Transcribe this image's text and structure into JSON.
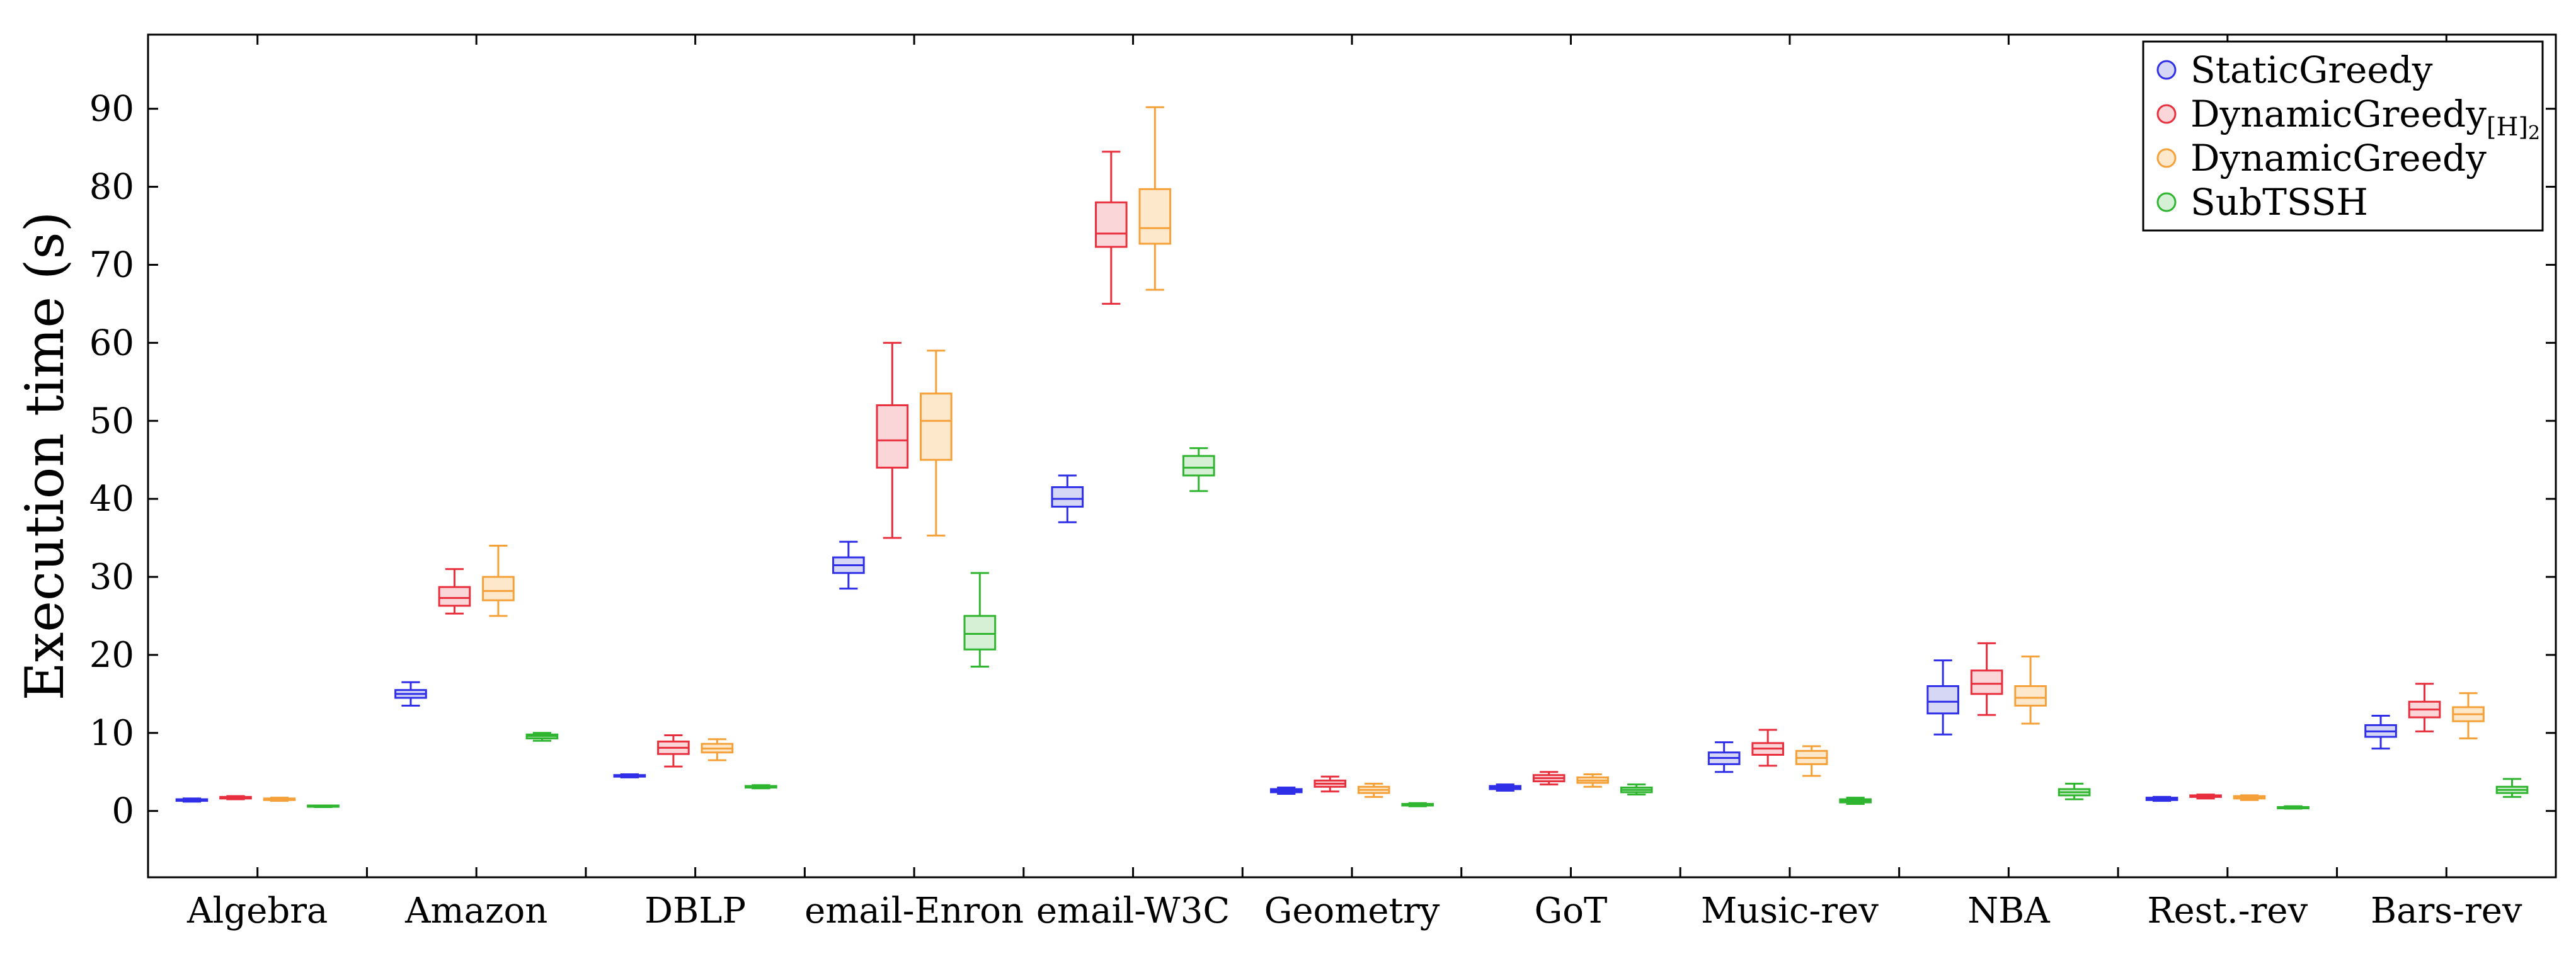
{
  "chart_data": {
    "type": "boxplot",
    "title": "",
    "xlabel": "",
    "ylabel": "Execution time (s)",
    "ylim": [
      -8.5,
      99.5
    ],
    "yticks": [
      0,
      10,
      20,
      30,
      40,
      50,
      60,
      70,
      80,
      90
    ],
    "categories": [
      "Algebra",
      "Amazon",
      "DBLP",
      "email-Enron",
      "email-W3C",
      "Geometry",
      "GoT",
      "Music-rev",
      "NBA",
      "Rest.-rev",
      "Bars-rev"
    ],
    "legend_position": "top-right",
    "series": [
      {
        "name": "StaticGreedy",
        "color": "#2f2fe8",
        "fill": "#d6d6f5",
        "boxes": [
          {
            "min": 1.2,
            "q1": 1.3,
            "median": 1.4,
            "q3": 1.5,
            "max": 1.6
          },
          {
            "min": 13.5,
            "q1": 14.5,
            "median": 15.0,
            "q3": 15.5,
            "max": 16.5
          },
          {
            "min": 4.3,
            "q1": 4.4,
            "median": 4.5,
            "q3": 4.6,
            "max": 4.7
          },
          {
            "min": 28.5,
            "q1": 30.5,
            "median": 31.5,
            "q3": 32.5,
            "max": 34.5
          },
          {
            "min": 37.0,
            "q1": 39.0,
            "median": 40.0,
            "q3": 41.5,
            "max": 43.0
          },
          {
            "min": 2.2,
            "q1": 2.4,
            "median": 2.6,
            "q3": 2.8,
            "max": 3.0
          },
          {
            "min": 2.6,
            "q1": 2.8,
            "median": 3.0,
            "q3": 3.2,
            "max": 3.4
          },
          {
            "min": 5.0,
            "q1": 6.0,
            "median": 6.8,
            "q3": 7.5,
            "max": 8.8
          },
          {
            "min": 9.8,
            "q1": 12.5,
            "median": 14.0,
            "q3": 16.0,
            "max": 19.3
          },
          {
            "min": 1.3,
            "q1": 1.4,
            "median": 1.5,
            "q3": 1.7,
            "max": 1.8
          },
          {
            "min": 8.0,
            "q1": 9.5,
            "median": 10.2,
            "q3": 11.0,
            "max": 12.2
          }
        ]
      },
      {
        "name": "DynamicGreedy[H]2",
        "label_main": "DynamicGreedy",
        "label_sub": "[H]",
        "label_subsub": "2",
        "color": "#e82f3e",
        "fill": "#fbd6d9",
        "boxes": [
          {
            "min": 1.5,
            "q1": 1.6,
            "median": 1.7,
            "q3": 1.8,
            "max": 1.9
          },
          {
            "min": 25.3,
            "q1": 26.3,
            "median": 27.3,
            "q3": 28.7,
            "max": 31.0
          },
          {
            "min": 5.7,
            "q1": 7.3,
            "median": 8.1,
            "q3": 8.9,
            "max": 9.7
          },
          {
            "min": 35.0,
            "q1": 44.0,
            "median": 47.5,
            "q3": 52.0,
            "max": 60.0
          },
          {
            "min": 65.0,
            "q1": 72.3,
            "median": 74.0,
            "q3": 78.0,
            "max": 84.5
          },
          {
            "min": 2.5,
            "q1": 3.1,
            "median": 3.5,
            "q3": 3.9,
            "max": 4.4
          },
          {
            "min": 3.4,
            "q1": 3.8,
            "median": 4.2,
            "q3": 4.6,
            "max": 5.0
          },
          {
            "min": 5.8,
            "q1": 7.2,
            "median": 8.0,
            "q3": 8.7,
            "max": 10.4
          },
          {
            "min": 12.3,
            "q1": 15.0,
            "median": 16.3,
            "q3": 18.0,
            "max": 21.5
          },
          {
            "min": 1.6,
            "q1": 1.8,
            "median": 1.9,
            "q3": 2.0,
            "max": 2.1
          },
          {
            "min": 10.2,
            "q1": 12.0,
            "median": 13.0,
            "q3": 14.0,
            "max": 16.3
          }
        ]
      },
      {
        "name": "DynamicGreedy",
        "color": "#f5a13a",
        "fill": "#fde8cc",
        "boxes": [
          {
            "min": 1.3,
            "q1": 1.4,
            "median": 1.5,
            "q3": 1.6,
            "max": 1.7
          },
          {
            "min": 25.0,
            "q1": 27.0,
            "median": 28.2,
            "q3": 30.0,
            "max": 34.0
          },
          {
            "min": 6.5,
            "q1": 7.5,
            "median": 8.0,
            "q3": 8.6,
            "max": 9.2
          },
          {
            "min": 35.3,
            "q1": 45.0,
            "median": 50.0,
            "q3": 53.5,
            "max": 59.0
          },
          {
            "min": 66.8,
            "q1": 72.7,
            "median": 74.7,
            "q3": 79.7,
            "max": 90.2
          },
          {
            "min": 1.8,
            "q1": 2.3,
            "median": 2.7,
            "q3": 3.1,
            "max": 3.5
          },
          {
            "min": 3.1,
            "q1": 3.6,
            "median": 3.9,
            "q3": 4.3,
            "max": 4.7
          },
          {
            "min": 4.5,
            "q1": 6.0,
            "median": 6.8,
            "q3": 7.7,
            "max": 8.3
          },
          {
            "min": 11.2,
            "q1": 13.5,
            "median": 14.5,
            "q3": 16.0,
            "max": 19.8
          },
          {
            "min": 1.4,
            "q1": 1.6,
            "median": 1.8,
            "q3": 1.9,
            "max": 2.0
          },
          {
            "min": 9.3,
            "q1": 11.5,
            "median": 12.4,
            "q3": 13.3,
            "max": 15.1
          }
        ]
      },
      {
        "name": "SubTSSH",
        "color": "#2fb52f",
        "fill": "#d6f0d6",
        "boxes": [
          {
            "min": 0.5,
            "q1": 0.6,
            "median": 0.6,
            "q3": 0.7,
            "max": 0.7
          },
          {
            "min": 9.0,
            "q1": 9.3,
            "median": 9.6,
            "q3": 9.8,
            "max": 10.0
          },
          {
            "min": 2.9,
            "q1": 3.0,
            "median": 3.1,
            "q3": 3.2,
            "max": 3.3
          },
          {
            "min": 18.5,
            "q1": 20.7,
            "median": 22.7,
            "q3": 25.0,
            "max": 30.5
          },
          {
            "min": 41.0,
            "q1": 43.0,
            "median": 44.0,
            "q3": 45.5,
            "max": 46.5
          },
          {
            "min": 0.6,
            "q1": 0.7,
            "median": 0.8,
            "q3": 0.9,
            "max": 1.0
          },
          {
            "min": 2.1,
            "q1": 2.4,
            "median": 2.7,
            "q3": 3.0,
            "max": 3.4
          },
          {
            "min": 0.9,
            "q1": 1.1,
            "median": 1.3,
            "q3": 1.5,
            "max": 1.7
          },
          {
            "min": 1.5,
            "q1": 2.0,
            "median": 2.4,
            "q3": 2.8,
            "max": 3.5
          },
          {
            "min": 0.3,
            "q1": 0.4,
            "median": 0.5,
            "q3": 0.5,
            "max": 0.6
          },
          {
            "min": 1.8,
            "q1": 2.3,
            "median": 2.7,
            "q3": 3.1,
            "max": 4.1
          }
        ]
      }
    ]
  }
}
